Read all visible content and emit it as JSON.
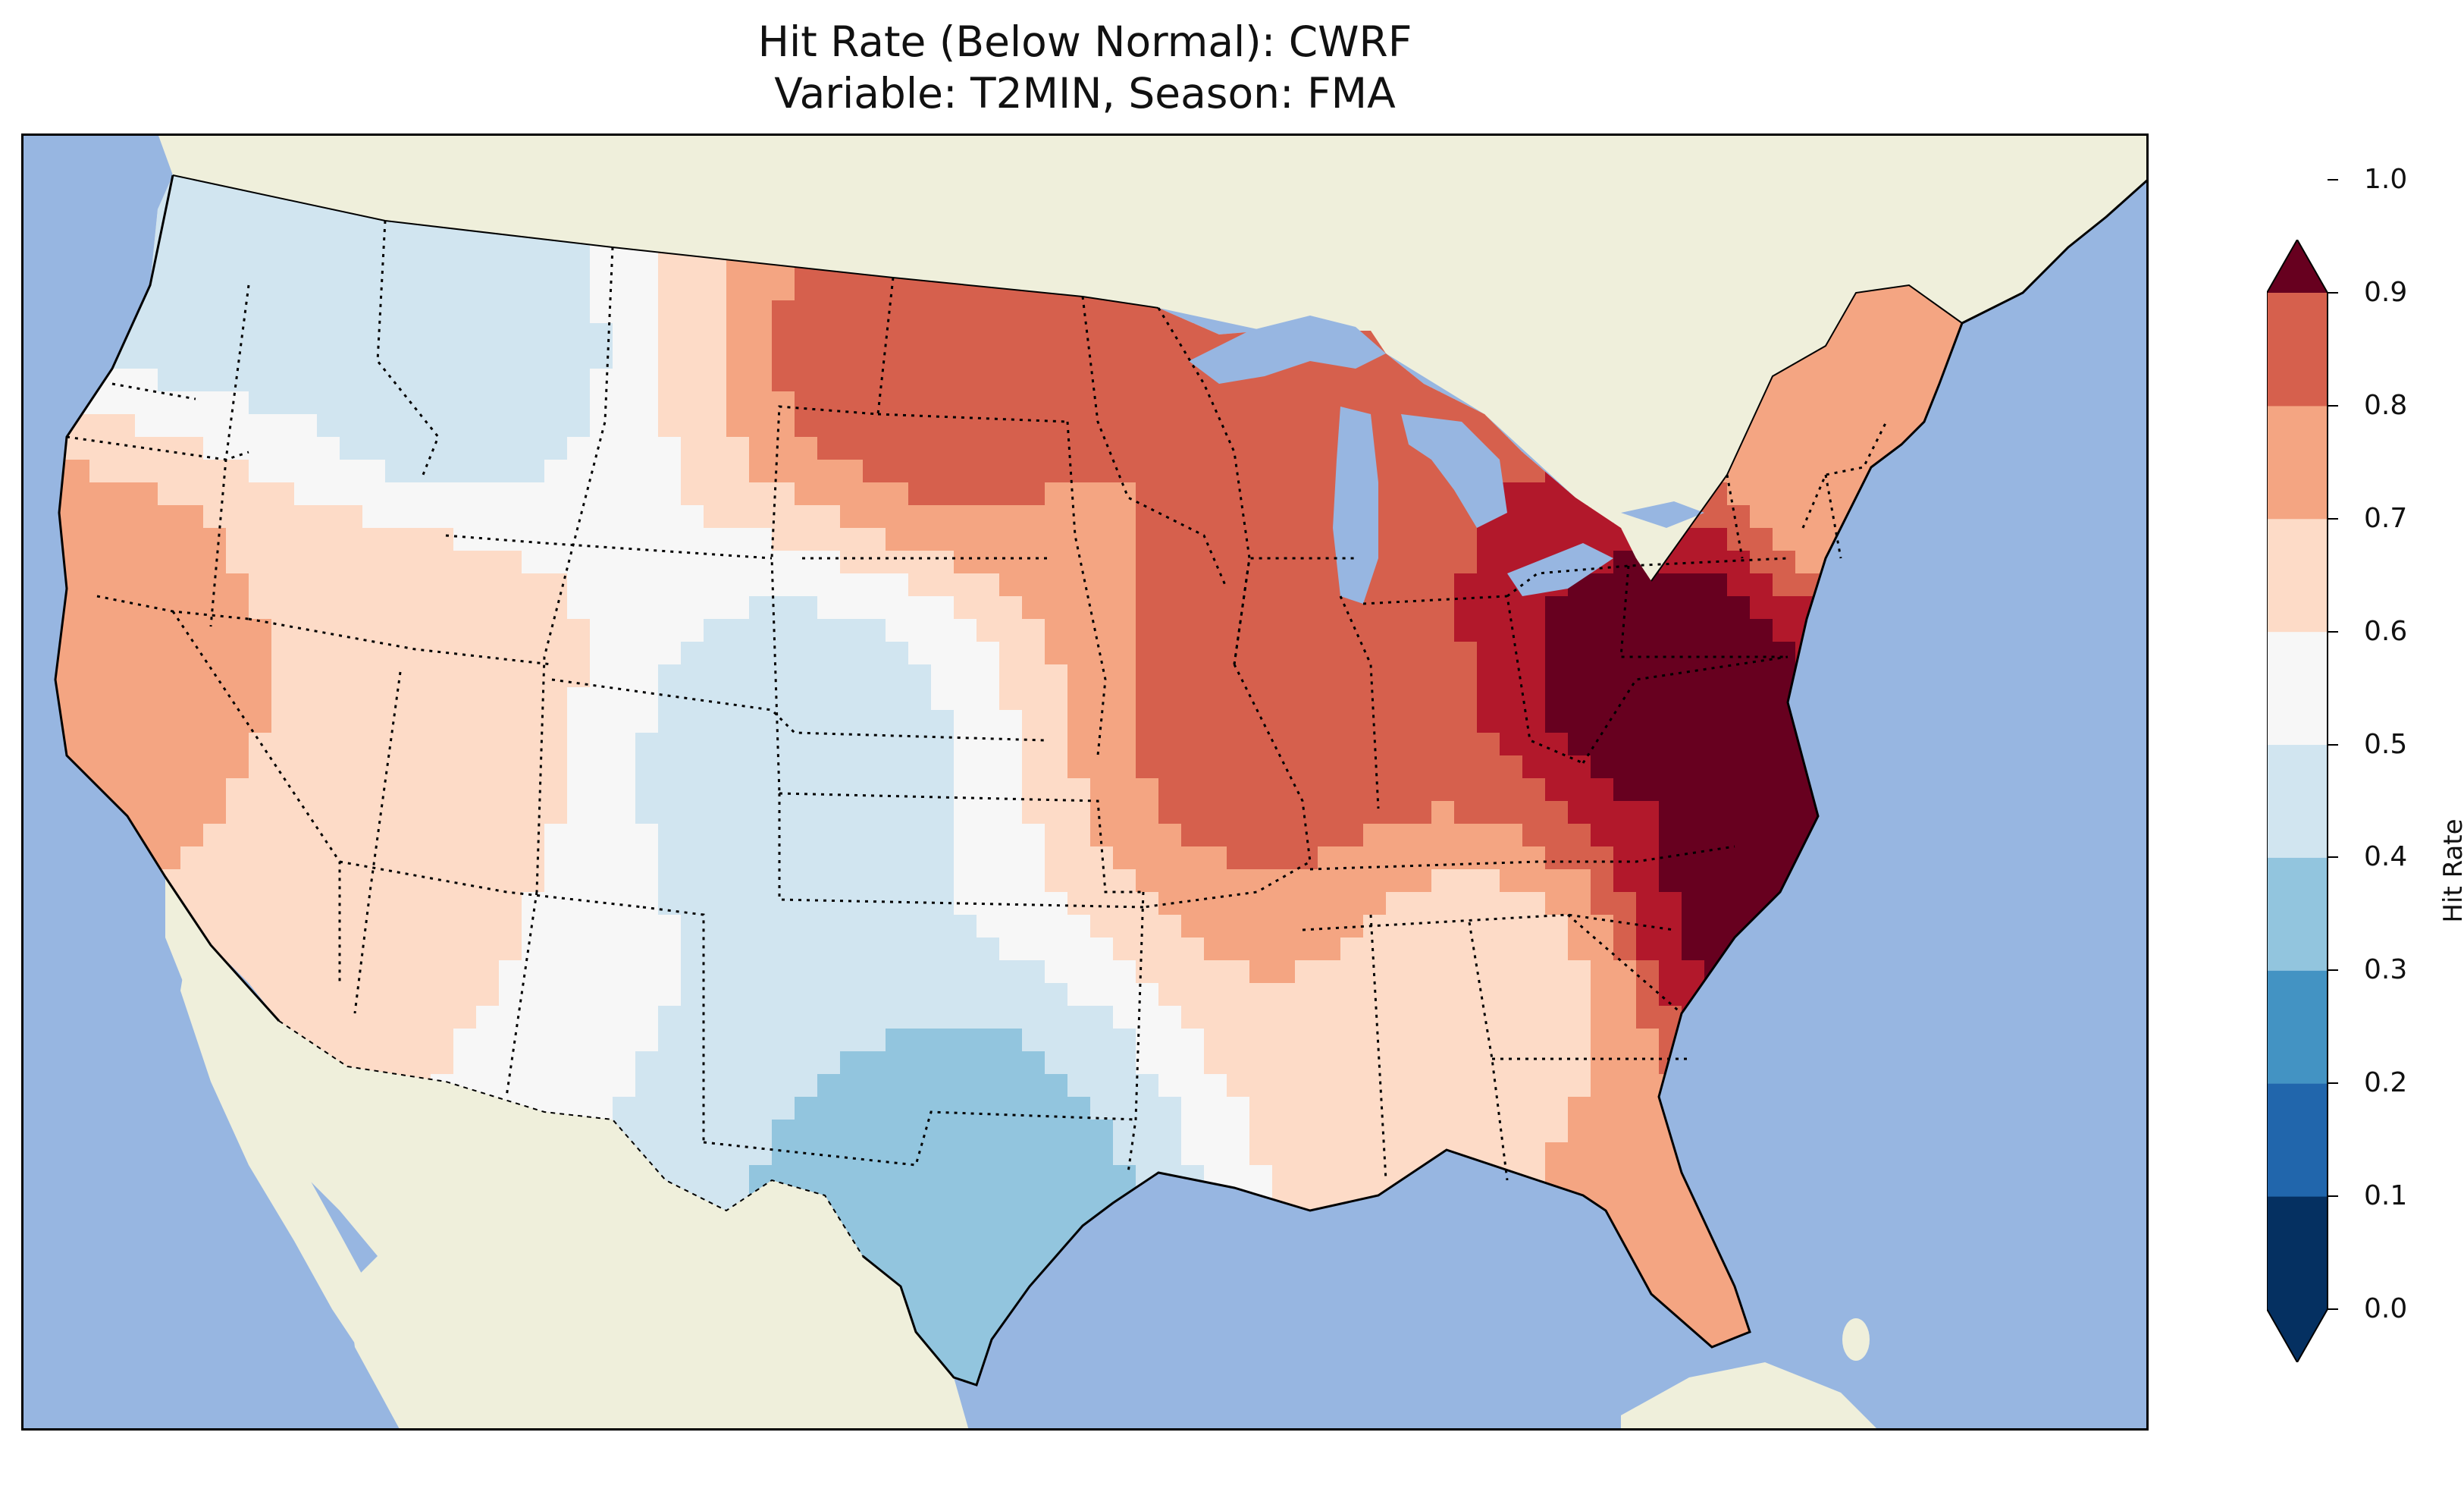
{
  "figure": {
    "title_line1": "Hit Rate (Below Normal): CWRF",
    "title_line2": "Variable: T2MIN, Season: FMA"
  },
  "colorbar": {
    "label": "Hit Rate",
    "ticks": [
      "0.0",
      "0.1",
      "0.2",
      "0.3",
      "0.4",
      "0.5",
      "0.6",
      "0.7",
      "0.8",
      "0.9",
      "1.0"
    ],
    "colors": [
      "#053061",
      "#2166ac",
      "#4393c3",
      "#92c5de",
      "#d1e5f0",
      "#f7f7f7",
      "#fddbc7",
      "#f4a582",
      "#d6604d",
      "#b2182b",
      "#67001f"
    ],
    "extend": "both"
  },
  "map_data": {
    "region": "Contiguous United States",
    "colors": {
      "ocean": "#97b6e1",
      "land": "#efefdb",
      "border": "#000000"
    },
    "regional_hit_rate": [
      {
        "region": "Pacific Northwest (western Washington)",
        "value": 0.3
      },
      {
        "region": "Idaho panhandle",
        "value": 0.35
      },
      {
        "region": "California coast",
        "value": 0.65
      },
      {
        "region": "Great Basin",
        "value": 0.6
      },
      {
        "region": "Northern Plains (North Dakota)",
        "value": 0.75
      },
      {
        "region": "Colorado Rockies",
        "value": 0.35
      },
      {
        "region": "Southern Plains (Texas)",
        "value": 0.25
      },
      {
        "region": "Midwest (Illinois/Indiana)",
        "value": 0.75
      },
      {
        "region": "Mid-Atlantic (Pennsylvania/Maryland)",
        "value": 0.95
      },
      {
        "region": "North Carolina coast",
        "value": 0.95
      },
      {
        "region": "Southeast (Georgia/Alabama)",
        "value": 0.55
      },
      {
        "region": "Florida",
        "value": 0.6
      },
      {
        "region": "New England",
        "value": 0.6
      }
    ]
  }
}
